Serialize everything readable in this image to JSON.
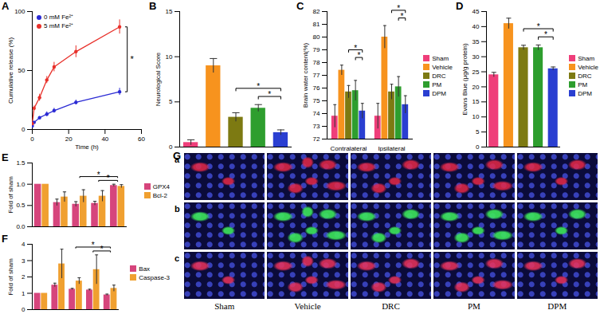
{
  "chart_data": [
    {
      "title": "A",
      "type": "line",
      "x_label": "Time (h)",
      "y_label": "Cumulative release (%)",
      "x": [
        0,
        1,
        4,
        8,
        12,
        24,
        48
      ],
      "series": [
        {
          "name": "0 mM Fe²⁺",
          "color": "#2a2ad4",
          "marker": "circle",
          "values": [
            3,
            6,
            10,
            13,
            16,
            23,
            32
          ],
          "errors": [
            1,
            1,
            1,
            2,
            2,
            2,
            3
          ]
        },
        {
          "name": "5 mM Fe²⁺",
          "color": "#e8302a",
          "marker": "circle",
          "values": [
            5,
            18,
            27,
            42,
            53,
            66,
            87
          ],
          "errors": [
            1,
            2,
            3,
            3,
            4,
            5,
            6
          ]
        }
      ],
      "xlim": [
        0,
        60
      ],
      "xticks": [
        0,
        20,
        40,
        60
      ],
      "ylim": [
        0,
        100
      ],
      "yticks": [
        0,
        50,
        100
      ],
      "legend": "top-left",
      "significance": [
        {
          "between": [
            "0 mM Fe²⁺",
            "5 mM Fe²⁺"
          ],
          "label": "*"
        }
      ]
    },
    {
      "title": "B",
      "type": "bar",
      "y_label": "Neurological Score",
      "categories": [
        "Sham",
        "Vehicle",
        "DRC",
        "PM",
        "DPM"
      ],
      "values": [
        0.5,
        9,
        3.3,
        4.3,
        1.6
      ],
      "errors": [
        0.3,
        0.8,
        0.5,
        0.4,
        0.3
      ],
      "colors": [
        "#ef3e7a",
        "#f7931e",
        "#7d7a12",
        "#2e9e2e",
        "#2a3fd1"
      ],
      "ylim": [
        0,
        15
      ],
      "yticks": [
        0,
        5,
        10,
        15
      ],
      "tick_labels": "y",
      "significance": [
        {
          "from": "DRC",
          "to": "DPM",
          "label": "*"
        },
        {
          "from": "PM",
          "to": "DPM",
          "label": "*"
        }
      ]
    },
    {
      "title": "C",
      "type": "bar",
      "y_label": "Brain water content(%)",
      "categories": [
        "Contralateral",
        "Ipsilateral"
      ],
      "series": [
        {
          "name": "Sham",
          "color": "#ef3e7a",
          "values": [
            73.8,
            73.8
          ],
          "errors": [
            0.9,
            1.0
          ]
        },
        {
          "name": "Vehicle",
          "color": "#f7931e",
          "values": [
            77.4,
            80.0
          ],
          "errors": [
            0.4,
            0.9
          ]
        },
        {
          "name": "DRC",
          "color": "#7d7a12",
          "values": [
            75.7,
            75.7
          ],
          "errors": [
            0.5,
            0.6
          ]
        },
        {
          "name": "PM",
          "color": "#2e9e2e",
          "values": [
            75.8,
            76.1
          ],
          "errors": [
            0.8,
            0.8
          ]
        },
        {
          "name": "DPM",
          "color": "#2a3fd1",
          "values": [
            74.2,
            74.7
          ],
          "errors": [
            0.6,
            0.7
          ]
        }
      ],
      "ylim": [
        72,
        82
      ],
      "yticks": [
        72,
        73,
        74,
        75,
        76,
        77,
        78,
        79,
        80,
        81,
        82
      ],
      "legend": "right",
      "significance": [
        {
          "group": "Contralateral",
          "from": "DRC",
          "to": "DPM",
          "label": "*"
        },
        {
          "group": "Contralateral",
          "from": "PM",
          "to": "DPM",
          "label": "*"
        },
        {
          "group": "Ipsilateral",
          "from": "DRC",
          "to": "DPM",
          "label": "*"
        },
        {
          "group": "Ipsilateral",
          "from": "PM",
          "to": "DPM",
          "label": "*"
        }
      ]
    },
    {
      "title": "D",
      "type": "bar",
      "y_label": "Evans Blue (μg/g protein)",
      "categories": [
        "Sham",
        "Vehicle",
        "DRC",
        "PM",
        "DPM"
      ],
      "values": [
        24,
        41,
        33,
        33,
        26
      ],
      "errors": [
        0.8,
        1.8,
        0.8,
        0.9,
        0.6
      ],
      "colors": [
        "#ef3e7a",
        "#f7931e",
        "#7d7a12",
        "#2e9e2e",
        "#2a3fd1"
      ],
      "ylim": [
        0,
        45
      ],
      "yticks": [
        0,
        5,
        10,
        15,
        20,
        25,
        30,
        35,
        40,
        45
      ],
      "tick_labels": "y",
      "legend": "right",
      "significance": [
        {
          "from": "DRC",
          "to": "DPM",
          "label": "*"
        },
        {
          "from": "PM",
          "to": "DPM",
          "label": "*"
        }
      ]
    },
    {
      "title": "E",
      "type": "bar",
      "y_label": "Fold of sham",
      "categories": [
        "Sham",
        "Vehicle",
        "DRC",
        "PM",
        "DPM"
      ],
      "series": [
        {
          "name": "GPX4",
          "color": "#d6457c",
          "values": [
            1,
            0.57,
            0.53,
            0.55,
            0.97
          ],
          "errors": [
            0,
            0.08,
            0.06,
            0.05,
            0.03
          ]
        },
        {
          "name": "Bcl-2",
          "color": "#f0a030",
          "values": [
            1,
            0.7,
            0.72,
            0.72,
            0.95
          ],
          "errors": [
            0,
            0.12,
            0.15,
            0.13,
            0.04
          ]
        }
      ],
      "ylim": [
        0,
        1.5
      ],
      "yticks": [
        {
          "value": 0,
          "label": "0.0"
        },
        0.5,
        {
          "value": 1,
          "label": "1.0"
        },
        1.5
      ],
      "tick_labels": "y",
      "legend": "right",
      "significance": [
        {
          "from": "DRC",
          "to": "DPM",
          "label": "*"
        },
        {
          "from": "PM",
          "to": "DPM",
          "label": "*"
        }
      ]
    },
    {
      "title": "F",
      "type": "bar",
      "y_label": "Fold of sham",
      "categories": [
        "Sham",
        "Vehicle",
        "DRC",
        "PM",
        "DPM"
      ],
      "series": [
        {
          "name": "Bax",
          "color": "#d6457c",
          "values": [
            1,
            1.5,
            1.25,
            1.2,
            0.9
          ],
          "errors": [
            0,
            0.12,
            0.05,
            0.05,
            0.05
          ]
        },
        {
          "name": "Caspase-3",
          "color": "#f0a030",
          "values": [
            1,
            2.8,
            1.75,
            2.45,
            1.3
          ],
          "errors": [
            0,
            0.9,
            0.2,
            0.9,
            0.2
          ]
        }
      ],
      "ylim": [
        0,
        4
      ],
      "yticks": [
        0,
        1,
        2,
        3,
        4
      ],
      "tick_labels": "y",
      "legend": "right",
      "significance": [
        {
          "from": "DRC",
          "to": "DPM",
          "label": "*"
        },
        {
          "from": "PM",
          "to": "DPM",
          "label": "*"
        }
      ]
    }
  ],
  "image_panel": {
    "title": "G",
    "rows": [
      "a",
      "b",
      "c"
    ],
    "columns": [
      "Sham",
      "Vehicle",
      "DRC",
      "PM",
      "DPM"
    ]
  }
}
